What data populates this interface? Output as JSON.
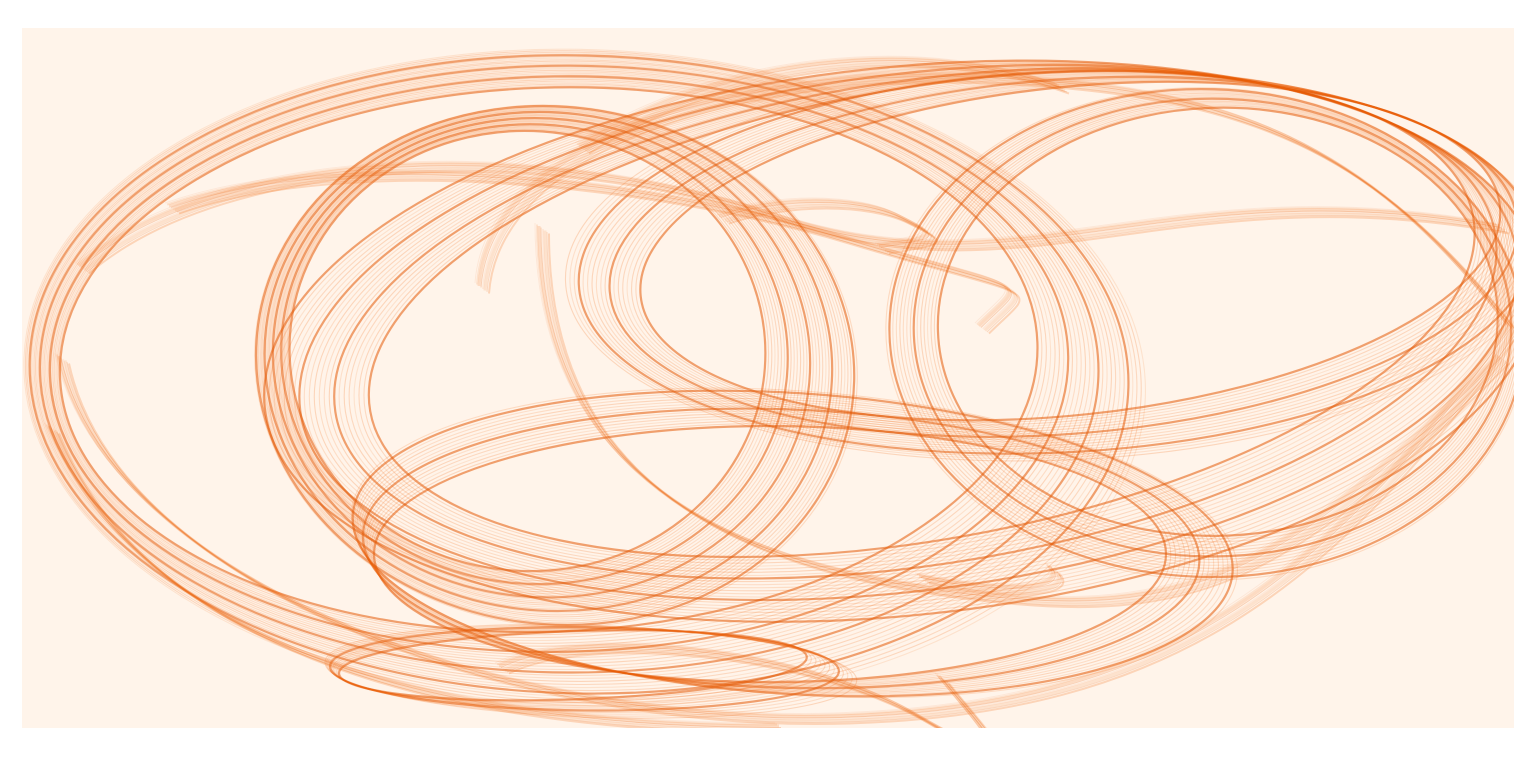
{
  "artwork": {
    "kind": "strange-attractor-density-plot",
    "background_color": "#fff4ea",
    "stroke_color": "#f26a12",
    "highlight_color": "#e35a05",
    "shape": "looping-orange-bands"
  }
}
